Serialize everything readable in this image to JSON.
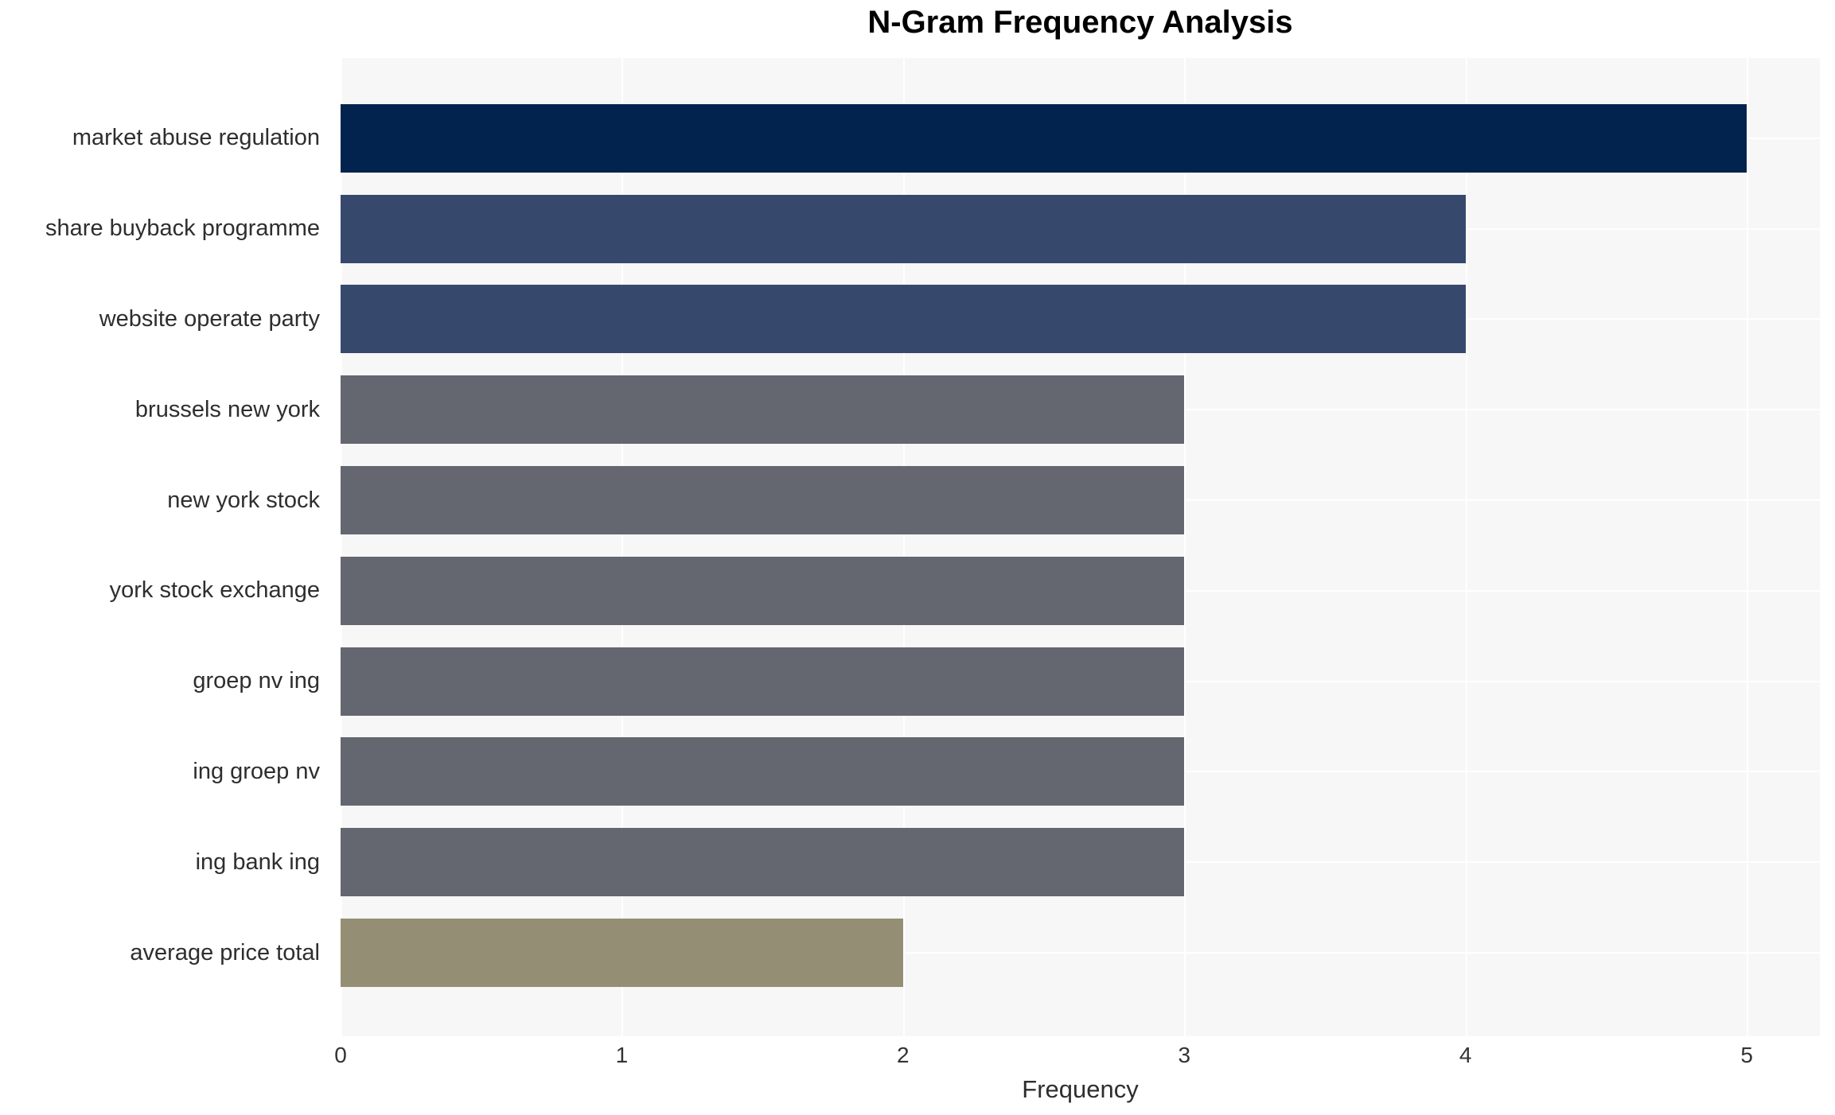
{
  "chart_data": {
    "type": "bar",
    "orientation": "horizontal",
    "title": "N-Gram Frequency Analysis",
    "xlabel": "Frequency",
    "ylabel": "",
    "categories": [
      "market abuse regulation",
      "share buyback programme",
      "website operate party",
      "brussels new york",
      "new york stock",
      "york stock exchange",
      "groep nv ing",
      "ing groep nv",
      "ing bank ing",
      "average price total"
    ],
    "values": [
      5,
      4,
      4,
      3,
      3,
      3,
      3,
      3,
      3,
      2
    ],
    "bar_colors": [
      "#02234d",
      "#36486c",
      "#36486c",
      "#64676f",
      "#64676f",
      "#64676f",
      "#64676f",
      "#64676f",
      "#64676f",
      "#948f74"
    ],
    "xticks": [
      0,
      1,
      2,
      3,
      4,
      5
    ],
    "xlim": [
      0,
      5.26
    ],
    "grid": true,
    "grid_color": "#ffffff",
    "plot_background": "#f7f7f7",
    "page_background": "#ffffff",
    "text_color": "#2e2e2e",
    "title_color": "#000000",
    "legend": false
  }
}
